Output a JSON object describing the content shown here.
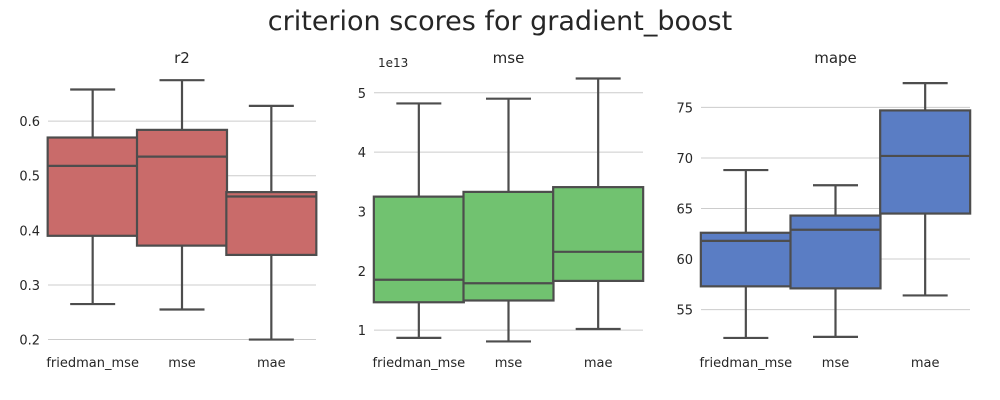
{
  "figure_title": "criterion scores for gradient_boost",
  "chart_data": [
    {
      "type": "box",
      "title": "r2",
      "offset_text": "",
      "categories": [
        "friedman_mse",
        "mse",
        "mae"
      ],
      "yticks": [
        "0.2",
        "0.3",
        "0.4",
        "0.5",
        "0.6"
      ],
      "ytick_values": [
        0.2,
        0.3,
        0.4,
        0.5,
        0.6
      ],
      "ylim": [
        0.19,
        0.69
      ],
      "color": "#c96b6a",
      "boxes": [
        {
          "whislo": 0.265,
          "q1": 0.39,
          "med": 0.518,
          "q3": 0.57,
          "whishi": 0.658
        },
        {
          "whislo": 0.255,
          "q1": 0.372,
          "med": 0.535,
          "q3": 0.584,
          "whishi": 0.675
        },
        {
          "whislo": 0.2,
          "q1": 0.355,
          "med": 0.462,
          "q3": 0.47,
          "whishi": 0.628
        }
      ]
    },
    {
      "type": "box",
      "title": "mse",
      "offset_text": "1e13",
      "categories": [
        "friedman_mse",
        "mse",
        "mae"
      ],
      "yticks": [
        "1",
        "2",
        "3",
        "4",
        "5"
      ],
      "ytick_values": [
        1,
        2,
        3,
        4,
        5
      ],
      "ylim": [
        0.75,
        5.35
      ],
      "color": "#71c270",
      "boxes": [
        {
          "whislo": 0.87,
          "q1": 1.47,
          "med": 1.85,
          "q3": 3.25,
          "whishi": 4.82
        },
        {
          "whislo": 0.81,
          "q1": 1.5,
          "med": 1.79,
          "q3": 3.33,
          "whishi": 4.9
        },
        {
          "whislo": 1.02,
          "q1": 1.83,
          "med": 2.32,
          "q3": 3.41,
          "whishi": 5.24
        }
      ]
    },
    {
      "type": "box",
      "title": "mape",
      "offset_text": "",
      "categories": [
        "friedman_mse",
        "mse",
        "mae"
      ],
      "yticks": [
        "55",
        "60",
        "65",
        "70",
        "75"
      ],
      "ytick_values": [
        55,
        60,
        65,
        70,
        75
      ],
      "ylim": [
        51.5,
        78.5
      ],
      "color": "#5a7dc4",
      "boxes": [
        {
          "whislo": 52.2,
          "q1": 57.3,
          "med": 61.8,
          "q3": 62.6,
          "whishi": 68.8
        },
        {
          "whislo": 52.3,
          "q1": 57.1,
          "med": 62.9,
          "q3": 64.3,
          "whishi": 67.3
        },
        {
          "whislo": 56.4,
          "q1": 64.5,
          "med": 70.2,
          "q3": 74.7,
          "whishi": 77.4
        }
      ]
    }
  ]
}
